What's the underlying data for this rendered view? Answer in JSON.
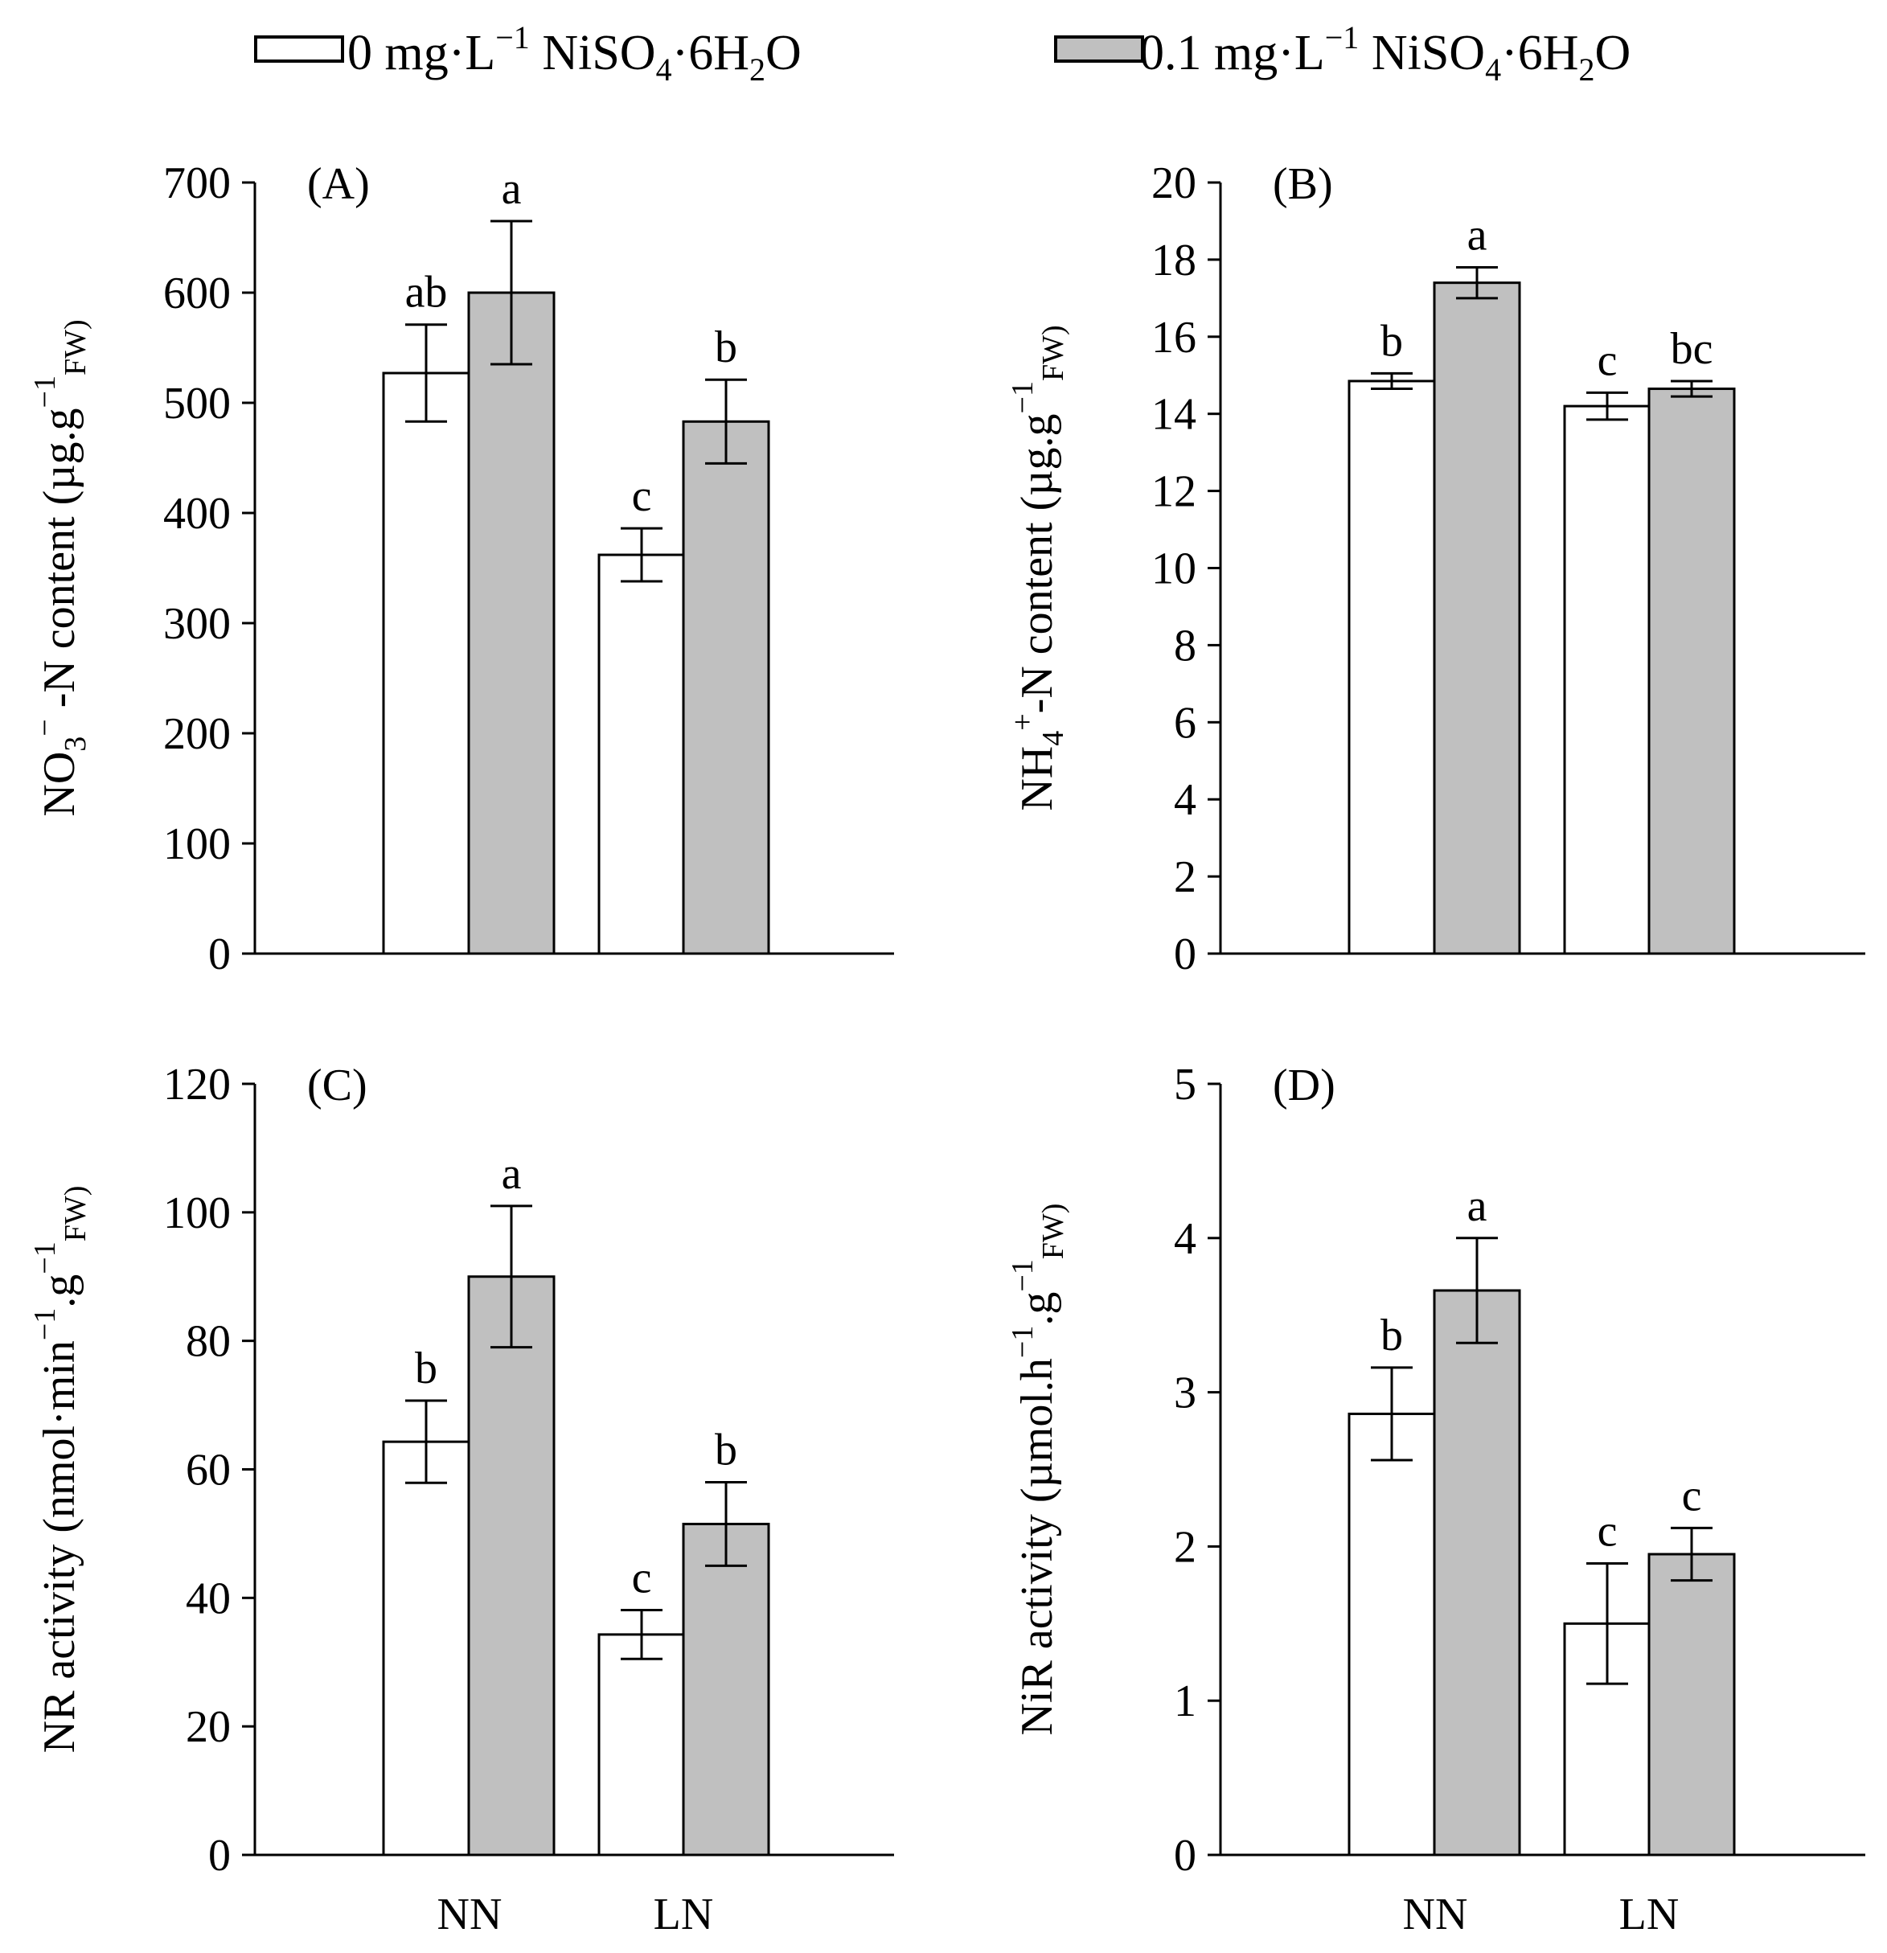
{
  "legend": {
    "series0": {
      "label": "0 mg·L",
      "sup": "−1",
      "formula_a": " NiSO",
      "formula_sub_a": "4",
      "formula_b": "·6H",
      "formula_sub_b": "2",
      "formula_c": "O"
    },
    "series1": {
      "label": "0.1 mg·L",
      "sup": "−1",
      "formula_a": " NiSO",
      "formula_sub_a": "4",
      "formula_b": "·6H",
      "formula_sub_b": "2",
      "formula_c": "O"
    }
  },
  "colors": {
    "series0": "#ffffff",
    "series1": "#c0c0c0",
    "stroke": "#000000"
  },
  "chart_data": [
    {
      "panel": "(A)",
      "type": "bar",
      "categories": [
        "NN",
        "LN"
      ],
      "series": [
        {
          "name": "0 mg·L−1 NiSO4·6H2O",
          "values": [
            527,
            362
          ],
          "errors": [
            44,
            24
          ],
          "letters": [
            "ab",
            "c"
          ]
        },
        {
          "name": "0.1 mg·L−1 NiSO4·6H2O",
          "values": [
            600,
            483
          ],
          "errors": [
            65,
            38
          ],
          "letters": [
            "a",
            "b"
          ]
        }
      ],
      "ylim": [
        0,
        700
      ],
      "yticks": [
        0,
        100,
        200,
        300,
        400,
        500,
        600,
        700
      ],
      "ylabel_parts": [
        [
          "NO",
          ""
        ],
        [
          "3",
          "sub"
        ],
        [
          "−",
          "sup"
        ],
        [
          " -N content (µg.g",
          ""
        ],
        [
          "−1",
          "sup"
        ],
        [
          "FW)",
          "sub"
        ]
      ],
      "xlabel": ""
    },
    {
      "panel": "(B)",
      "type": "bar",
      "categories": [
        "NN",
        "LN"
      ],
      "series": [
        {
          "name": "0 mg·L−1 NiSO4·6H2O",
          "values": [
            14.85,
            14.2
          ],
          "errors": [
            0.2,
            0.35
          ],
          "letters": [
            "b",
            "c"
          ]
        },
        {
          "name": "0.1 mg·L−1 NiSO4·6H2O",
          "values": [
            17.4,
            14.65
          ],
          "errors": [
            0.4,
            0.2
          ],
          "letters": [
            "a",
            "bc"
          ]
        }
      ],
      "ylim": [
        0,
        20
      ],
      "yticks": [
        0,
        2,
        4,
        6,
        8,
        10,
        12,
        14,
        16,
        18,
        20
      ],
      "ylabel_parts": [
        [
          "NH",
          ""
        ],
        [
          "4",
          "sub"
        ],
        [
          "+",
          "sup"
        ],
        [
          "-N content (µg.g",
          ""
        ],
        [
          "−1",
          "sup"
        ],
        [
          "FW)",
          "sub"
        ]
      ],
      "xlabel": ""
    },
    {
      "panel": "(C)",
      "type": "bar",
      "categories": [
        "NN",
        "LN"
      ],
      "series": [
        {
          "name": "0 mg·L−1 NiSO4·6H2O",
          "values": [
            64.3,
            34.3
          ],
          "errors": [
            6.4,
            3.8
          ],
          "letters": [
            "b",
            "c"
          ]
        },
        {
          "name": "0.1 mg·L−1 NiSO4·6H2O",
          "values": [
            90,
            51.5
          ],
          "errors": [
            11,
            6.5
          ],
          "letters": [
            "a",
            "b"
          ]
        }
      ],
      "ylim": [
        0,
        120
      ],
      "yticks": [
        0,
        20,
        40,
        60,
        80,
        100,
        120
      ],
      "ylabel_parts": [
        [
          "NR activity (nmol·min",
          ""
        ],
        [
          "−1",
          "sup"
        ],
        [
          ".g",
          ""
        ],
        [
          "−1",
          "sup"
        ],
        [
          "FW)",
          "sub"
        ]
      ],
      "xlabel": ""
    },
    {
      "panel": "(D)",
      "type": "bar",
      "categories": [
        "NN",
        "LN"
      ],
      "series": [
        {
          "name": "0 mg·L−1 NiSO4·6H2O",
          "values": [
            2.86,
            1.5
          ],
          "errors": [
            0.3,
            0.39
          ],
          "letters": [
            "b",
            "c"
          ]
        },
        {
          "name": "0.1 mg·L−1 NiSO4·6H2O",
          "values": [
            3.66,
            1.95
          ],
          "errors": [
            0.34,
            0.17
          ],
          "letters": [
            "a",
            "c"
          ]
        }
      ],
      "ylim": [
        0,
        5
      ],
      "yticks": [
        0,
        1,
        2,
        3,
        4,
        5
      ],
      "ylabel_parts": [
        [
          "NiR activity (µmol.h",
          ""
        ],
        [
          "−1",
          "sup"
        ],
        [
          ".g",
          ""
        ],
        [
          "−1",
          "sup"
        ],
        [
          "FW)",
          "sub"
        ]
      ],
      "xlabel": ""
    }
  ]
}
